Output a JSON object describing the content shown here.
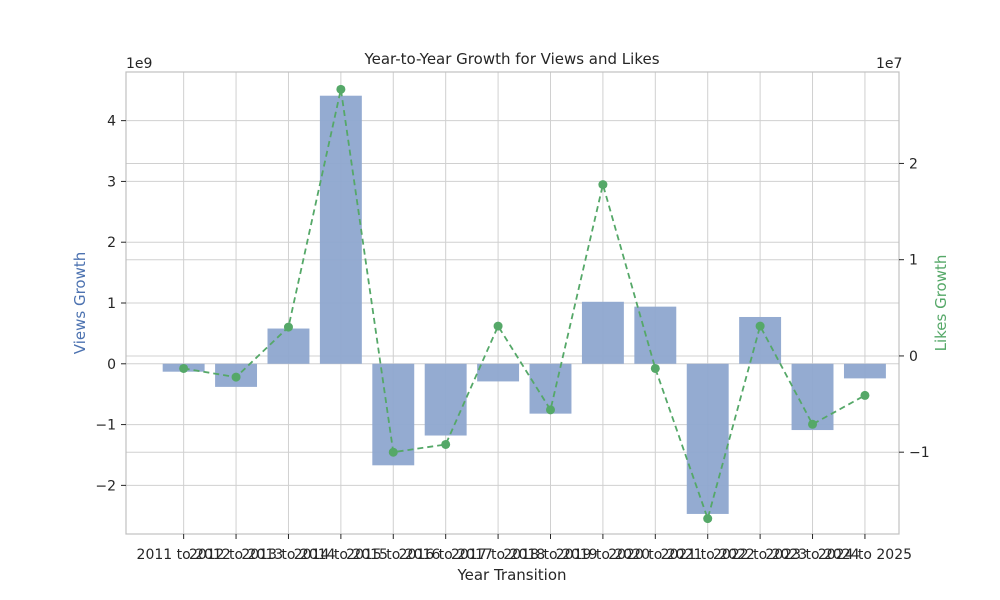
{
  "chart_data": {
    "type": "bar",
    "title": "Year-to-Year Growth for Views and Likes",
    "xlabel": "Year Transition",
    "categories": [
      "2011 to 2012",
      "2012 to 2013",
      "2013 to 2014",
      "2014 to 2015",
      "2015 to 2016",
      "2016 to 2017",
      "2017 to 2018",
      "2018 to 2019",
      "2019 to 2020",
      "2020 to 2021",
      "2021 to 2022",
      "2022 to 2023",
      "2023 to 2024",
      "2024 to 2025"
    ],
    "left_axis": {
      "label": "Views Growth",
      "offset_text": "1e9",
      "ylim": [
        -2.8,
        4.8
      ],
      "ticks": [
        -2,
        -1,
        0,
        1,
        2,
        3,
        4
      ],
      "tick_labels": [
        "−2",
        "−1",
        "0",
        "1",
        "2",
        "3",
        "4"
      ]
    },
    "right_axis": {
      "label": "Likes Growth",
      "offset_text": "1e7",
      "ylim": [
        -1.85,
        2.95
      ],
      "ticks": [
        -1,
        0,
        1,
        2
      ],
      "tick_labels": [
        "−1",
        "0",
        "1",
        "2"
      ]
    },
    "series": [
      {
        "name": "Views Growth",
        "type": "bar",
        "axis": "left",
        "scale": 1000000000.0,
        "values": [
          -0.13,
          -0.38,
          0.58,
          4.41,
          -1.67,
          -1.18,
          -0.29,
          -0.82,
          1.02,
          0.94,
          -2.47,
          0.77,
          -1.09,
          -0.24
        ]
      },
      {
        "name": "Likes Growth",
        "type": "line",
        "axis": "right",
        "scale": 10000000.0,
        "line_style": "dashed",
        "marker": "circle",
        "values": [
          -0.13,
          -0.22,
          0.3,
          2.77,
          -1.0,
          -0.92,
          0.31,
          -0.56,
          1.78,
          -0.13,
          -1.69,
          0.31,
          -0.71,
          -0.41
        ]
      }
    ],
    "grid": true,
    "colors": {
      "bar": "#8ea7cf",
      "line": "#55a868",
      "left_label": "#4c72b0",
      "right_label": "#55a868",
      "grid": "#d0d0d0",
      "frame": "#c0c0c0"
    }
  }
}
